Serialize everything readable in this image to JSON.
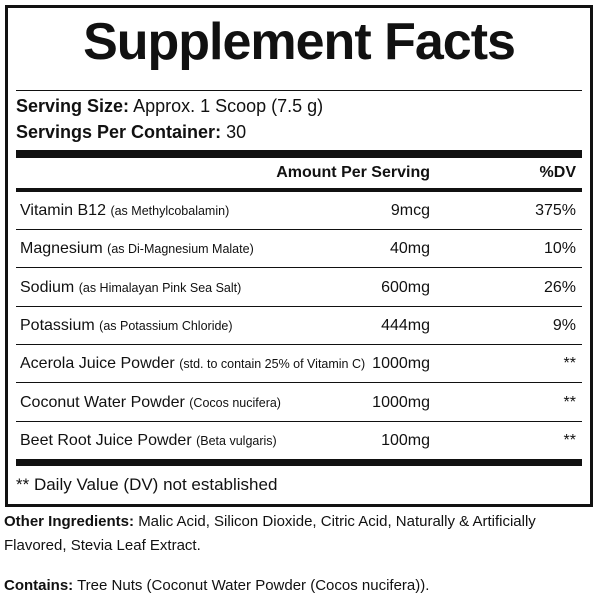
{
  "header": {
    "title": "Supplement Facts",
    "serving_size_label": "Serving Size:",
    "serving_size": "Approx. 1 Scoop (7.5 g)",
    "servings_label": "Servings Per Container:",
    "servings": "30"
  },
  "table": {
    "columns": [
      "Amount Per Serving",
      "%DV"
    ],
    "rows": [
      {
        "name": "Vitamin B12",
        "note": "(as Methylcobalamin)",
        "amount": "9mcg",
        "dv": "375%"
      },
      {
        "name": "Magnesium",
        "note": "(as Di-Magnesium Malate)",
        "amount": "40mg",
        "dv": "10%"
      },
      {
        "name": "Sodium",
        "note": "(as Himalayan Pink Sea Salt)",
        "amount": "600mg",
        "dv": "26%"
      },
      {
        "name": "Potassium",
        "note": "(as Potassium Chloride)",
        "amount": "444mg",
        "dv": "9%"
      },
      {
        "name": "Acerola Juice Powder",
        "note": "(std. to contain 25% of Vitamin C)",
        "amount": "1000mg",
        "dv": "**"
      },
      {
        "name": "Coconut Water Powder",
        "note": "(Cocos nucifera)",
        "amount": "1000mg",
        "dv": "**"
      },
      {
        "name": "Beet Root Juice Powder",
        "note": "(Beta vulgaris)",
        "amount": "100mg",
        "dv": "**"
      }
    ],
    "footnote": "** Daily Value (DV) not established"
  },
  "other": {
    "label": "Other Ingredients:",
    "text": "Malic Acid, Silicon Dioxide, Citric Acid, Naturally & Artificially Flavored, Stevia Leaf Extract."
  },
  "contains": {
    "label": "Contains:",
    "text": "Tree Nuts (Coconut Water Powder (Cocos nucifera))."
  }
}
